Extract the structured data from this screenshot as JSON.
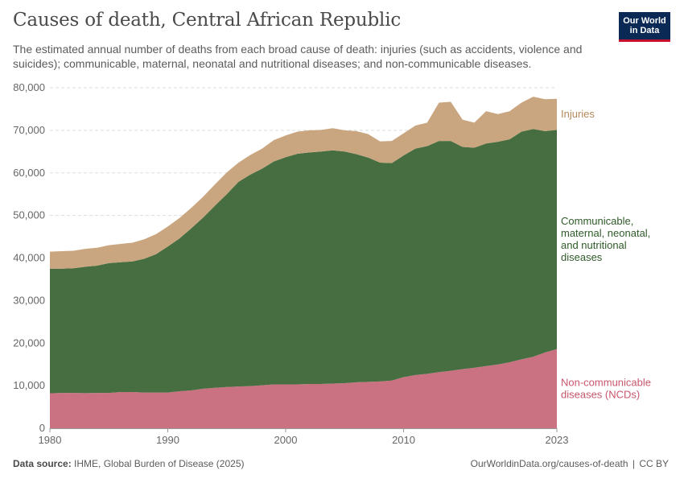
{
  "header": {
    "title": "Causes of death, Central African Republic",
    "subtitle": "The estimated annual number of deaths from each broad cause of death: injuries (such as accidents, violence and suicides); communicable, maternal, neonatal and nutritional diseases; and non-communicable diseases."
  },
  "logo": {
    "line1": "Our World",
    "line2": "in Data",
    "bg_color": "#0a2a55",
    "accent_color": "#c8102e"
  },
  "footer": {
    "source_label": "Data source:",
    "source_text": "IHME, Global Burden of Disease (2025)",
    "url": "OurWorldinData.org/causes-of-death",
    "license": "CC BY"
  },
  "chart_data": {
    "type": "area",
    "stacked": true,
    "x": [
      1980,
      1981,
      1982,
      1983,
      1984,
      1985,
      1986,
      1987,
      1988,
      1989,
      1990,
      1991,
      1992,
      1993,
      1994,
      1995,
      1996,
      1997,
      1998,
      1999,
      2000,
      2001,
      2002,
      2003,
      2004,
      2005,
      2006,
      2007,
      2008,
      2009,
      2010,
      2011,
      2012,
      2013,
      2014,
      2015,
      2016,
      2017,
      2018,
      2019,
      2020,
      2021,
      2022,
      2023
    ],
    "xlim": [
      1980,
      2023
    ],
    "ylim": [
      0,
      80000
    ],
    "x_ticks": [
      1980,
      1990,
      2000,
      2010,
      2023
    ],
    "y_ticks": [
      0,
      10000,
      20000,
      30000,
      40000,
      50000,
      60000,
      70000,
      80000
    ],
    "x_tick_labels": [
      "1980",
      "1990",
      "2000",
      "2010",
      "2023"
    ],
    "y_tick_labels": [
      "0",
      "10,000",
      "20,000",
      "30,000",
      "40,000",
      "50,000",
      "60,000",
      "70,000",
      "80,000"
    ],
    "grid": "horizontal dashed",
    "legend": "inline labels at right end",
    "series": [
      {
        "name": "Non-communicable diseases (NCDs)",
        "label_lines": [
          "Non-communicable",
          "diseases (NCDs)"
        ],
        "color": "#ca7282",
        "label_color": "#c8566b",
        "values": [
          8200,
          8300,
          8300,
          8250,
          8300,
          8300,
          8500,
          8500,
          8400,
          8400,
          8400,
          8700,
          8900,
          9300,
          9500,
          9700,
          9800,
          9900,
          10100,
          10300,
          10300,
          10300,
          10400,
          10400,
          10500,
          10600,
          10800,
          10900,
          11000,
          11200,
          12000,
          12500,
          12800,
          13200,
          13500,
          13900,
          14200,
          14600,
          15000,
          15500,
          16200,
          16800,
          17800,
          18600
        ]
      },
      {
        "name": "Communicable, maternal, neonatal, and nutritional diseases",
        "label_lines": [
          "Communicable,",
          "maternal, neonatal,",
          "and nutritional",
          "diseases"
        ],
        "color": "#476e41",
        "label_color": "#2f5a29",
        "values": [
          29300,
          29200,
          29300,
          29700,
          29900,
          30500,
          30500,
          30700,
          31400,
          32500,
          34300,
          35900,
          38100,
          40200,
          42800,
          45300,
          48100,
          49700,
          50900,
          52400,
          53400,
          54200,
          54400,
          54600,
          54800,
          54400,
          53600,
          52700,
          51400,
          51100,
          52100,
          53200,
          53500,
          54300,
          54000,
          52200,
          51700,
          52300,
          52300,
          52400,
          53500,
          53500,
          52000,
          51500
        ]
      },
      {
        "name": "Injuries",
        "label_lines": [
          "Injuries"
        ],
        "color": "#c9a67f",
        "label_color": "#b5895b",
        "values": [
          4000,
          4100,
          4100,
          4200,
          4200,
          4200,
          4300,
          4400,
          4600,
          4700,
          4700,
          4800,
          4800,
          4900,
          5000,
          5100,
          4500,
          4600,
          4700,
          5000,
          5100,
          5200,
          5200,
          5100,
          5200,
          5000,
          5400,
          5500,
          5000,
          5200,
          5200,
          5400,
          5500,
          9000,
          9200,
          6400,
          5900,
          7600,
          6500,
          6600,
          6800,
          7600,
          7500,
          7300
        ]
      }
    ]
  }
}
